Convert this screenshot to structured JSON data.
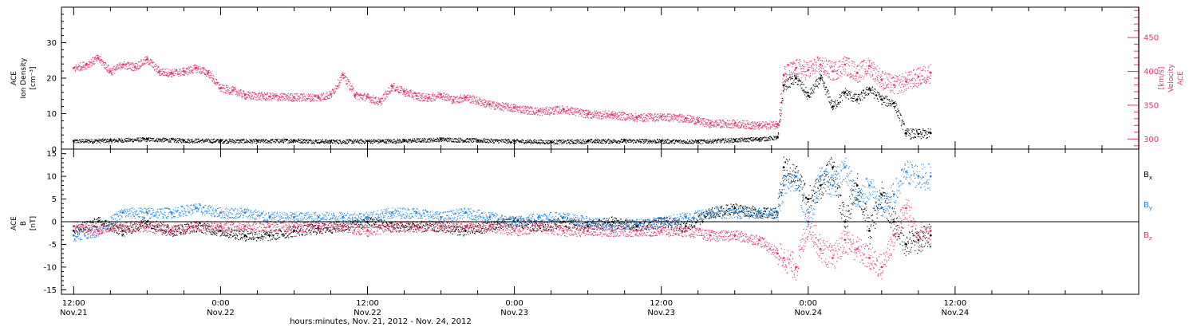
{
  "figure": {
    "xlabel": "hours:minutes, Nov. 21, 2012 - Nov. 24, 2012",
    "x_range_hours": [
      -1,
      87
    ],
    "x_ticks": [
      {
        "h": 0,
        "time": "12:00",
        "date": "Nov.21"
      },
      {
        "h": 12,
        "time": "0:00",
        "date": "Nov.22"
      },
      {
        "h": 24,
        "time": "12:00",
        "date": "Nov.22"
      },
      {
        "h": 36,
        "time": "0:00",
        "date": "Nov.23"
      },
      {
        "h": 48,
        "time": "12:00",
        "date": "Nov.23"
      },
      {
        "h": 60,
        "time": "0:00",
        "date": "Nov.24"
      },
      {
        "h": 72,
        "time": "12:00",
        "date": "Nov.24"
      }
    ],
    "colors": {
      "axes": "#000000",
      "black_series": "#000000",
      "pink_series": "#e8336a",
      "blue_series": "#1e88e5"
    }
  },
  "chart_data": [
    {
      "type": "scatter",
      "panel": "top",
      "left_axis_label": [
        "ACE",
        "Ion Density",
        "[cm⁻³]"
      ],
      "right_axis_label": [
        "ACE",
        "Velocity",
        "[km/s]"
      ],
      "left_ylim": [
        0,
        40
      ],
      "left_ticks": [
        0,
        10,
        20,
        30
      ],
      "right_ylim": [
        285,
        495
      ],
      "right_ticks": [
        300,
        350,
        400,
        450
      ],
      "right_axis_color": "#e8336a",
      "series": [
        {
          "axis": "left",
          "color": "#000000",
          "points": [
            [
              0,
              2.3
            ],
            [
              3,
              2.5
            ],
            [
              6,
              2.8
            ],
            [
              9,
              2.5
            ],
            [
              12,
              2.4
            ],
            [
              15,
              2.3
            ],
            [
              18,
              2.5
            ],
            [
              21,
              2.2
            ],
            [
              24,
              2.3
            ],
            [
              27,
              2.4
            ],
            [
              30,
              2.8
            ],
            [
              33,
              2.5
            ],
            [
              36,
              2.3
            ],
            [
              39,
              2.1
            ],
            [
              42,
              2.3
            ],
            [
              45,
              2.4
            ],
            [
              48,
              2.3
            ],
            [
              51,
              2.2
            ],
            [
              54,
              2.6
            ],
            [
              56,
              2.9
            ],
            [
              57.5,
              3.3
            ],
            [
              58,
              18
            ],
            [
              59,
              20
            ],
            [
              60,
              15
            ],
            [
              61,
              20
            ],
            [
              62,
              12
            ],
            [
              63,
              16
            ],
            [
              64,
              14
            ],
            [
              65,
              17
            ],
            [
              66,
              14
            ],
            [
              67,
              13
            ],
            [
              68,
              4.5
            ],
            [
              69,
              4.3
            ],
            [
              70,
              4.5
            ]
          ]
        },
        {
          "axis": "right",
          "color": "#e8336a",
          "points": [
            [
              0,
              405
            ],
            [
              1,
              410
            ],
            [
              2,
              420
            ],
            [
              3,
              400
            ],
            [
              4,
              410
            ],
            [
              5,
              407
            ],
            [
              6,
              418
            ],
            [
              7,
              400
            ],
            [
              8,
              398
            ],
            [
              9,
              400
            ],
            [
              10,
              405
            ],
            [
              11,
              398
            ],
            [
              12,
              375
            ],
            [
              13,
              372
            ],
            [
              14,
              365
            ],
            [
              16,
              363
            ],
            [
              18,
              362
            ],
            [
              20,
              362
            ],
            [
              21,
              366
            ],
            [
              22,
              395
            ],
            [
              23,
              365
            ],
            [
              24,
              362
            ],
            [
              25,
              355
            ],
            [
              26,
              378
            ],
            [
              27,
              370
            ],
            [
              28,
              364
            ],
            [
              29,
              361
            ],
            [
              30,
              366
            ],
            [
              31,
              358
            ],
            [
              32,
              362
            ],
            [
              34,
              351
            ],
            [
              36,
              346
            ],
            [
              38,
              341
            ],
            [
              40,
              344
            ],
            [
              42,
              337
            ],
            [
              44,
              336
            ],
            [
              46,
              332
            ],
            [
              48,
              333
            ],
            [
              50,
              331
            ],
            [
              51,
              327
            ],
            [
              52,
              323
            ],
            [
              54,
              323
            ],
            [
              56,
              320
            ],
            [
              57.5,
              322
            ],
            [
              58,
              395
            ],
            [
              59,
              405
            ],
            [
              60,
              402
            ],
            [
              61,
              410
            ],
            [
              62,
              400
            ],
            [
              63,
              410
            ],
            [
              64,
              398
            ],
            [
              65,
              408
            ],
            [
              66,
              388
            ],
            [
              67,
              380
            ],
            [
              68,
              385
            ],
            [
              69,
              392
            ],
            [
              70,
              398
            ]
          ]
        }
      ]
    },
    {
      "type": "scatter",
      "panel": "bottom",
      "left_axis_label": [
        "ACE",
        "B",
        "[nT]"
      ],
      "ylim": [
        -16,
        16
      ],
      "ticks": [
        -15,
        -10,
        -5,
        0,
        5,
        10,
        15
      ],
      "legend": [
        {
          "label": "B",
          "sub": "x",
          "color": "#000000"
        },
        {
          "label": "B",
          "sub": "y",
          "color": "#1e88e5"
        },
        {
          "label": "B",
          "sub": "z",
          "color": "#e8336a"
        }
      ],
      "series": [
        {
          "name": "Bx",
          "color": "#000000",
          "points": [
            [
              0,
              -2
            ],
            [
              2,
              0
            ],
            [
              4,
              -2
            ],
            [
              6,
              0
            ],
            [
              8,
              -2
            ],
            [
              10,
              -1
            ],
            [
              12,
              -2
            ],
            [
              14,
              -3
            ],
            [
              16,
              -3
            ],
            [
              18,
              -2
            ],
            [
              20,
              -1.5
            ],
            [
              22,
              -1
            ],
            [
              24,
              0
            ],
            [
              26,
              -1
            ],
            [
              28,
              -1
            ],
            [
              30,
              -1
            ],
            [
              32,
              -2
            ],
            [
              34,
              -1
            ],
            [
              36,
              0
            ],
            [
              38,
              -1
            ],
            [
              40,
              0
            ],
            [
              42,
              -1
            ],
            [
              44,
              0
            ],
            [
              46,
              -1
            ],
            [
              48,
              0
            ],
            [
              50,
              -1
            ],
            [
              52,
              2
            ],
            [
              54,
              3
            ],
            [
              56,
              2
            ],
            [
              57.5,
              2
            ],
            [
              58,
              12
            ],
            [
              59,
              10
            ],
            [
              60,
              5
            ],
            [
              61,
              8
            ],
            [
              62,
              12
            ],
            [
              63,
              0
            ],
            [
              64,
              8
            ],
            [
              65,
              -2
            ],
            [
              66,
              6
            ],
            [
              67,
              0
            ],
            [
              68,
              -5
            ],
            [
              69,
              -4
            ],
            [
              70,
              -3
            ]
          ]
        },
        {
          "name": "By",
          "color": "#1e88e5",
          "points": [
            [
              0,
              -3
            ],
            [
              2,
              -2
            ],
            [
              4,
              2
            ],
            [
              6,
              2
            ],
            [
              8,
              2
            ],
            [
              10,
              3
            ],
            [
              12,
              2
            ],
            [
              14,
              2
            ],
            [
              16,
              1
            ],
            [
              18,
              1
            ],
            [
              20,
              1
            ],
            [
              22,
              1
            ],
            [
              24,
              1
            ],
            [
              26,
              2
            ],
            [
              28,
              2
            ],
            [
              30,
              1
            ],
            [
              32,
              2
            ],
            [
              34,
              1
            ],
            [
              36,
              0
            ],
            [
              38,
              1
            ],
            [
              40,
              1
            ],
            [
              42,
              0
            ],
            [
              44,
              -1
            ],
            [
              46,
              -0.5
            ],
            [
              48,
              0
            ],
            [
              50,
              1
            ],
            [
              52,
              2
            ],
            [
              54,
              2
            ],
            [
              56,
              2
            ],
            [
              57.5,
              2
            ],
            [
              58,
              8
            ],
            [
              59,
              10
            ],
            [
              60,
              0
            ],
            [
              61,
              10
            ],
            [
              62,
              8
            ],
            [
              63,
              12
            ],
            [
              64,
              5
            ],
            [
              65,
              8
            ],
            [
              66,
              3
            ],
            [
              67,
              6
            ],
            [
              68,
              11
            ],
            [
              69,
              10
            ],
            [
              70,
              10
            ]
          ]
        },
        {
          "name": "Bz",
          "color": "#e8336a",
          "points": [
            [
              0,
              -1
            ],
            [
              2,
              -2
            ],
            [
              4,
              -1
            ],
            [
              6,
              -1
            ],
            [
              8,
              -2
            ],
            [
              10,
              -1
            ],
            [
              12,
              -1
            ],
            [
              14,
              -1
            ],
            [
              16,
              -1
            ],
            [
              18,
              -1
            ],
            [
              20,
              -1
            ],
            [
              22,
              -1
            ],
            [
              24,
              -2
            ],
            [
              26,
              -1
            ],
            [
              28,
              -1
            ],
            [
              30,
              -1
            ],
            [
              32,
              -1
            ],
            [
              34,
              -1
            ],
            [
              36,
              -2
            ],
            [
              38,
              -1
            ],
            [
              40,
              -2
            ],
            [
              42,
              -2
            ],
            [
              44,
              -2
            ],
            [
              46,
              -2
            ],
            [
              48,
              -2
            ],
            [
              50,
              -2
            ],
            [
              52,
              -3
            ],
            [
              54,
              -3
            ],
            [
              56,
              -4
            ],
            [
              57.5,
              -7
            ],
            [
              58,
              -8
            ],
            [
              59,
              -10
            ],
            [
              60,
              0
            ],
            [
              61,
              -6
            ],
            [
              62,
              -8
            ],
            [
              63,
              -4
            ],
            [
              64,
              -6
            ],
            [
              65,
              -8
            ],
            [
              66,
              -10
            ],
            [
              67,
              -3
            ],
            [
              68,
              3
            ],
            [
              69,
              -3
            ],
            [
              70,
              -2
            ]
          ]
        }
      ]
    }
  ]
}
